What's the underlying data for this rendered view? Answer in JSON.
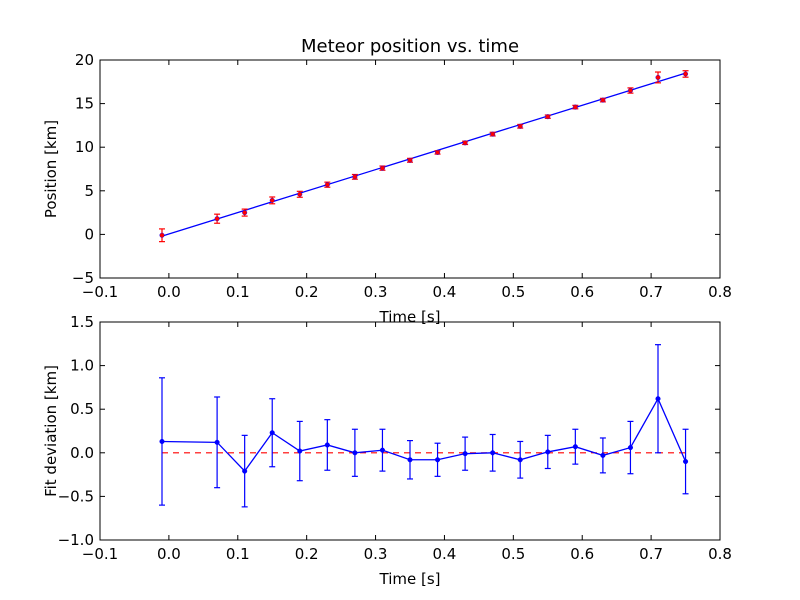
{
  "chart_data": [
    {
      "type": "scatter",
      "title": "Meteor position vs. time",
      "xlabel": "Time [s]",
      "ylabel": "Position [km]",
      "xlim": [
        -0.1,
        0.8
      ],
      "ylim": [
        -5,
        20
      ],
      "x_ticks": [
        "−0.1",
        "0.0",
        "0.1",
        "0.2",
        "0.3",
        "0.4",
        "0.5",
        "0.6",
        "0.7",
        "0.8"
      ],
      "y_ticks": [
        "−5",
        "0",
        "5",
        "10",
        "15",
        "20"
      ],
      "grid": false,
      "fit_line": {
        "x": [
          -0.01,
          0.75
        ],
        "y": [
          -0.2,
          18.5
        ],
        "color": "#0000ff"
      },
      "series": [
        {
          "marker_color": "#ff0000",
          "errorbar_color": "#ff0000",
          "x": [
            -0.01,
            0.07,
            0.11,
            0.15,
            0.19,
            0.23,
            0.27,
            0.31,
            0.35,
            0.39,
            0.43,
            0.47,
            0.51,
            0.55,
            0.59,
            0.63,
            0.67,
            0.71,
            0.75
          ],
          "y": [
            -0.1,
            1.8,
            2.5,
            3.9,
            4.6,
            5.7,
            6.6,
            7.6,
            8.5,
            9.4,
            10.5,
            11.5,
            12.4,
            13.5,
            14.6,
            15.4,
            16.5,
            18.0,
            18.4
          ],
          "yerr": [
            0.73,
            0.52,
            0.4,
            0.39,
            0.34,
            0.29,
            0.27,
            0.24,
            0.22,
            0.19,
            0.19,
            0.21,
            0.21,
            0.19,
            0.2,
            0.2,
            0.3,
            0.62,
            0.37
          ]
        }
      ]
    },
    {
      "type": "line",
      "title": "",
      "xlabel": "Time [s]",
      "ylabel": "Fit deviation [km]",
      "xlim": [
        -0.1,
        0.8
      ],
      "ylim": [
        -1.0,
        1.5
      ],
      "x_ticks": [
        "−0.1",
        "0.0",
        "0.1",
        "0.2",
        "0.3",
        "0.4",
        "0.5",
        "0.6",
        "0.7",
        "0.8"
      ],
      "y_ticks": [
        "−1.0",
        "−0.5",
        "0.0",
        "0.5",
        "1.0",
        "1.5"
      ],
      "grid": false,
      "reference_line": {
        "y": 0,
        "style": "dashed",
        "color": "#ff0000"
      },
      "series": [
        {
          "color": "#0000ff",
          "x": [
            -0.01,
            0.07,
            0.11,
            0.15,
            0.19,
            0.23,
            0.27,
            0.31,
            0.35,
            0.39,
            0.43,
            0.47,
            0.51,
            0.55,
            0.59,
            0.63,
            0.67,
            0.71,
            0.75
          ],
          "y": [
            0.13,
            0.12,
            -0.21,
            0.23,
            0.02,
            0.09,
            0.0,
            0.03,
            -0.08,
            -0.08,
            -0.01,
            0.0,
            -0.08,
            0.01,
            0.07,
            -0.03,
            0.06,
            0.62,
            -0.1
          ],
          "yerr": [
            0.73,
            0.52,
            0.41,
            0.39,
            0.34,
            0.29,
            0.27,
            0.24,
            0.22,
            0.19,
            0.19,
            0.21,
            0.21,
            0.19,
            0.2,
            0.2,
            0.3,
            0.62,
            0.37
          ]
        }
      ]
    }
  ]
}
